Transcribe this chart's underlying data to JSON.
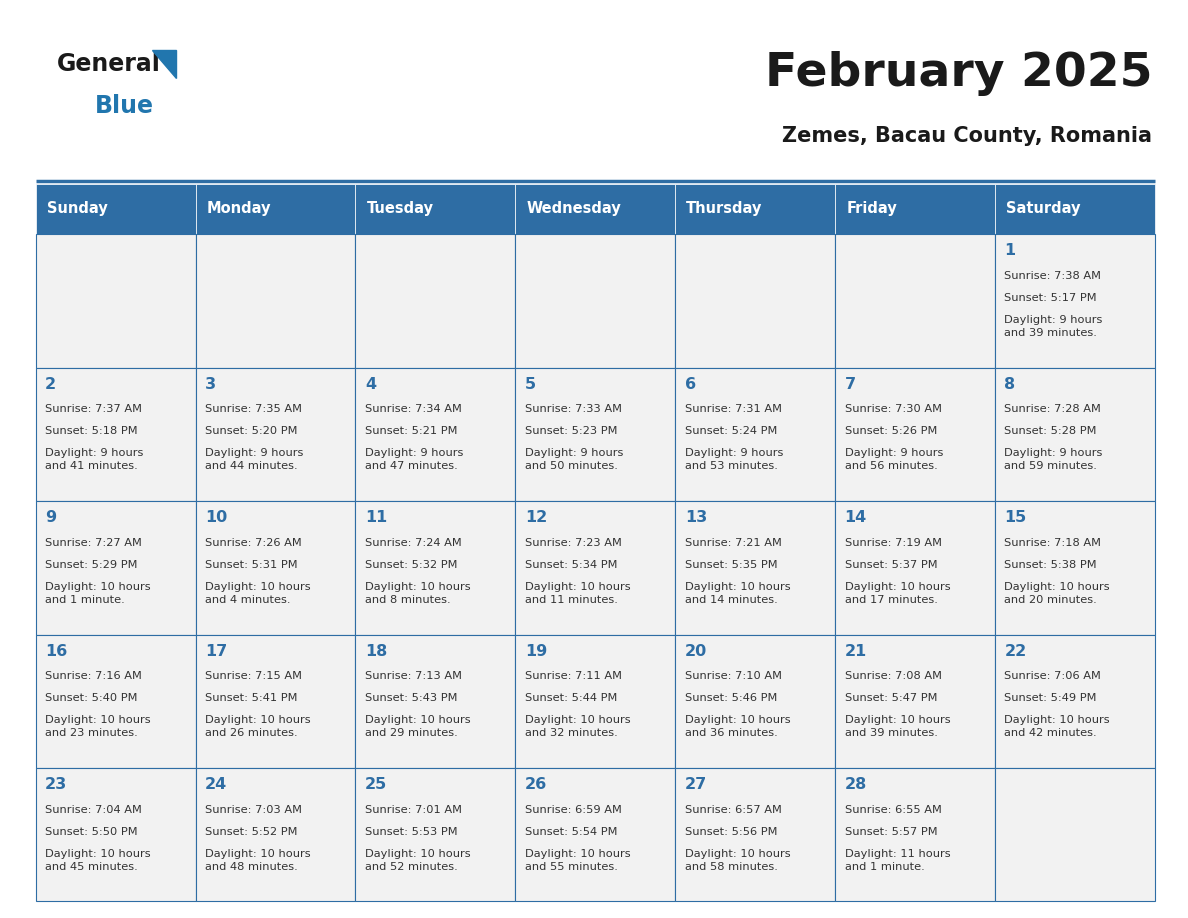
{
  "title": "February 2025",
  "subtitle": "Zemes, Bacau County, Romania",
  "days_of_week": [
    "Sunday",
    "Monday",
    "Tuesday",
    "Wednesday",
    "Thursday",
    "Friday",
    "Saturday"
  ],
  "header_bg": "#2E6DA4",
  "header_text": "#FFFFFF",
  "cell_bg": "#F2F2F2",
  "cell_border": "#2E6DA4",
  "title_color": "#1a1a1a",
  "subtitle_color": "#1a1a1a",
  "day_number_color": "#2E6DA4",
  "cell_text_color": "#333333",
  "calendar_data": [
    [
      null,
      null,
      null,
      null,
      null,
      null,
      {
        "day": 1,
        "sunrise": "7:38 AM",
        "sunset": "5:17 PM",
        "daylight": "9 hours and 39 minutes."
      }
    ],
    [
      {
        "day": 2,
        "sunrise": "7:37 AM",
        "sunset": "5:18 PM",
        "daylight": "9 hours and 41 minutes."
      },
      {
        "day": 3,
        "sunrise": "7:35 AM",
        "sunset": "5:20 PM",
        "daylight": "9 hours and 44 minutes."
      },
      {
        "day": 4,
        "sunrise": "7:34 AM",
        "sunset": "5:21 PM",
        "daylight": "9 hours and 47 minutes."
      },
      {
        "day": 5,
        "sunrise": "7:33 AM",
        "sunset": "5:23 PM",
        "daylight": "9 hours and 50 minutes."
      },
      {
        "day": 6,
        "sunrise": "7:31 AM",
        "sunset": "5:24 PM",
        "daylight": "9 hours and 53 minutes."
      },
      {
        "day": 7,
        "sunrise": "7:30 AM",
        "sunset": "5:26 PM",
        "daylight": "9 hours and 56 minutes."
      },
      {
        "day": 8,
        "sunrise": "7:28 AM",
        "sunset": "5:28 PM",
        "daylight": "9 hours and 59 minutes."
      }
    ],
    [
      {
        "day": 9,
        "sunrise": "7:27 AM",
        "sunset": "5:29 PM",
        "daylight": "10 hours and 1 minute."
      },
      {
        "day": 10,
        "sunrise": "7:26 AM",
        "sunset": "5:31 PM",
        "daylight": "10 hours and 4 minutes."
      },
      {
        "day": 11,
        "sunrise": "7:24 AM",
        "sunset": "5:32 PM",
        "daylight": "10 hours and 8 minutes."
      },
      {
        "day": 12,
        "sunrise": "7:23 AM",
        "sunset": "5:34 PM",
        "daylight": "10 hours and 11 minutes."
      },
      {
        "day": 13,
        "sunrise": "7:21 AM",
        "sunset": "5:35 PM",
        "daylight": "10 hours and 14 minutes."
      },
      {
        "day": 14,
        "sunrise": "7:19 AM",
        "sunset": "5:37 PM",
        "daylight": "10 hours and 17 minutes."
      },
      {
        "day": 15,
        "sunrise": "7:18 AM",
        "sunset": "5:38 PM",
        "daylight": "10 hours and 20 minutes."
      }
    ],
    [
      {
        "day": 16,
        "sunrise": "7:16 AM",
        "sunset": "5:40 PM",
        "daylight": "10 hours and 23 minutes."
      },
      {
        "day": 17,
        "sunrise": "7:15 AM",
        "sunset": "5:41 PM",
        "daylight": "10 hours and 26 minutes."
      },
      {
        "day": 18,
        "sunrise": "7:13 AM",
        "sunset": "5:43 PM",
        "daylight": "10 hours and 29 minutes."
      },
      {
        "day": 19,
        "sunrise": "7:11 AM",
        "sunset": "5:44 PM",
        "daylight": "10 hours and 32 minutes."
      },
      {
        "day": 20,
        "sunrise": "7:10 AM",
        "sunset": "5:46 PM",
        "daylight": "10 hours and 36 minutes."
      },
      {
        "day": 21,
        "sunrise": "7:08 AM",
        "sunset": "5:47 PM",
        "daylight": "10 hours and 39 minutes."
      },
      {
        "day": 22,
        "sunrise": "7:06 AM",
        "sunset": "5:49 PM",
        "daylight": "10 hours and 42 minutes."
      }
    ],
    [
      {
        "day": 23,
        "sunrise": "7:04 AM",
        "sunset": "5:50 PM",
        "daylight": "10 hours and 45 minutes."
      },
      {
        "day": 24,
        "sunrise": "7:03 AM",
        "sunset": "5:52 PM",
        "daylight": "10 hours and 48 minutes."
      },
      {
        "day": 25,
        "sunrise": "7:01 AM",
        "sunset": "5:53 PM",
        "daylight": "10 hours and 52 minutes."
      },
      {
        "day": 26,
        "sunrise": "6:59 AM",
        "sunset": "5:54 PM",
        "daylight": "10 hours and 55 minutes."
      },
      {
        "day": 27,
        "sunrise": "6:57 AM",
        "sunset": "5:56 PM",
        "daylight": "10 hours and 58 minutes."
      },
      {
        "day": 28,
        "sunrise": "6:55 AM",
        "sunset": "5:57 PM",
        "daylight": "11 hours and 1 minute."
      },
      null
    ]
  ],
  "logo_text_general": "General",
  "logo_text_blue": "Blue",
  "fig_width": 11.88,
  "fig_height": 9.18
}
